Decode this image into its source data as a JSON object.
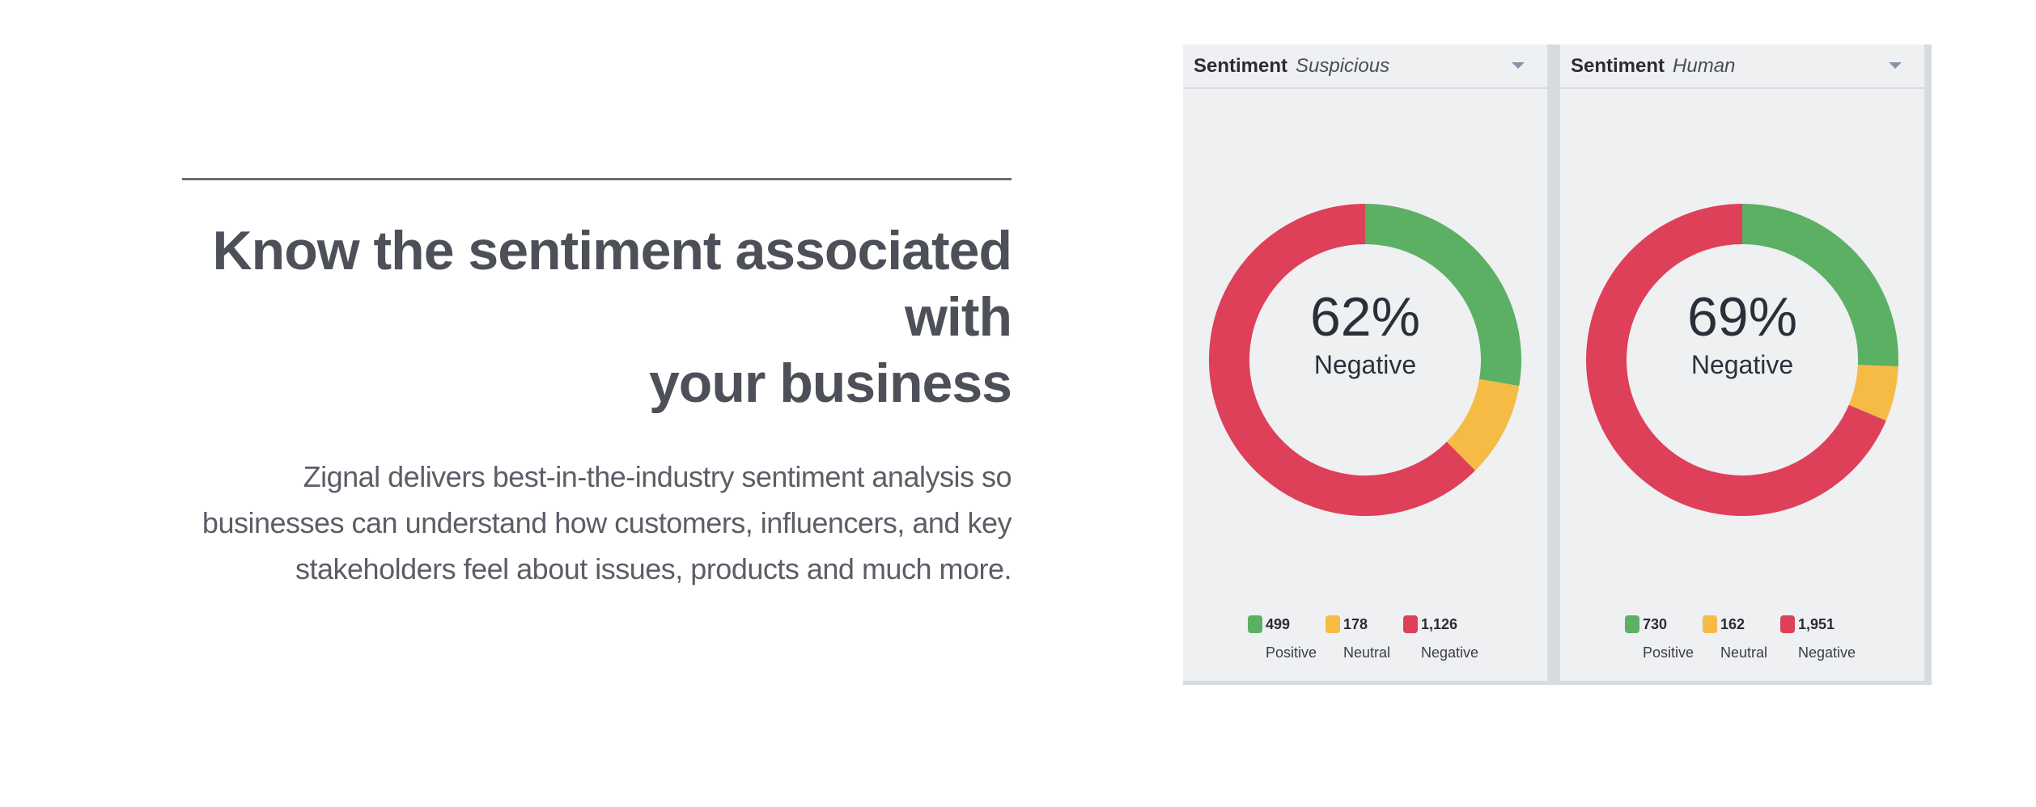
{
  "hero": {
    "headline_line1": "Know the sentiment associated with",
    "headline_line2": "your business",
    "body_line1": "Zignal delivers best-in-the-industry sentiment analysis so",
    "body_line2": "businesses can understand how customers, influencers, and key",
    "body_line3": "stakeholders feel about issues, products and much more."
  },
  "colors": {
    "positive": "#5cb064",
    "neutral": "#f5bb45",
    "negative": "#de4059"
  },
  "chart_data": [
    {
      "type": "pie",
      "title": "Sentiment",
      "subtitle": "Suspicious",
      "center_value": "62%",
      "center_label": "Negative",
      "categories": [
        "Positive",
        "Neutral",
        "Negative"
      ],
      "values": [
        499,
        178,
        1126
      ],
      "value_labels": [
        "499",
        "178",
        "1,126"
      ]
    },
    {
      "type": "pie",
      "title": "Sentiment",
      "subtitle": "Human",
      "center_value": "69%",
      "center_label": "Negative",
      "categories": [
        "Positive",
        "Neutral",
        "Negative"
      ],
      "values": [
        730,
        162,
        1951
      ],
      "value_labels": [
        "730",
        "162",
        "1,951"
      ]
    }
  ]
}
